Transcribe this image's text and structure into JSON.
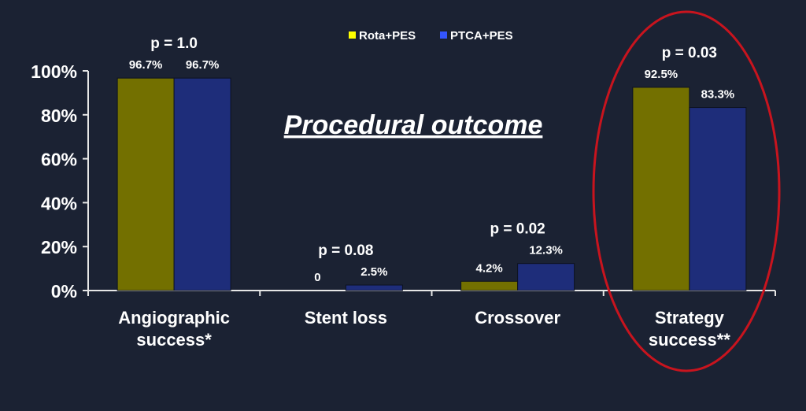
{
  "chart_data": {
    "type": "bar",
    "title": "Procedural outcome",
    "categories": [
      "Angiographic\nsuccess*",
      "Stent loss",
      "Crossover",
      "Strategy\nsuccess**"
    ],
    "series": [
      {
        "name": "Rota+PES",
        "values": [
          96.7,
          0,
          4.2,
          92.5
        ],
        "labels": [
          "96.7%",
          "0",
          "4.2%",
          "92.5%"
        ],
        "color": "#737000"
      },
      {
        "name": "PTCA+PES",
        "values": [
          96.7,
          2.5,
          12.3,
          83.3
        ],
        "labels": [
          "96.7%",
          "2.5%",
          "12.3%",
          "83.3%"
        ],
        "color": "#1e2d7a"
      }
    ],
    "p_values": [
      "p = 1.0",
      "p = 0.08",
      "p = 0.02",
      "p = 0.03"
    ],
    "ylim": [
      0,
      100
    ],
    "yticks": [
      0,
      20,
      40,
      60,
      80,
      100
    ],
    "ytick_labels": [
      "0%",
      "20%",
      "40%",
      "60%",
      "80%",
      "100%"
    ],
    "xlabel": "",
    "ylabel": "",
    "legend_position": "top-center",
    "grid": false,
    "highlighted_category": "Strategy\nsuccess**",
    "highlight_color": "#c8141e",
    "colors": {
      "background": "#1b2233",
      "text": "#ffffff",
      "legend_rota_swatch": "#ffff00",
      "legend_ptca_swatch": "#3355ff"
    }
  }
}
